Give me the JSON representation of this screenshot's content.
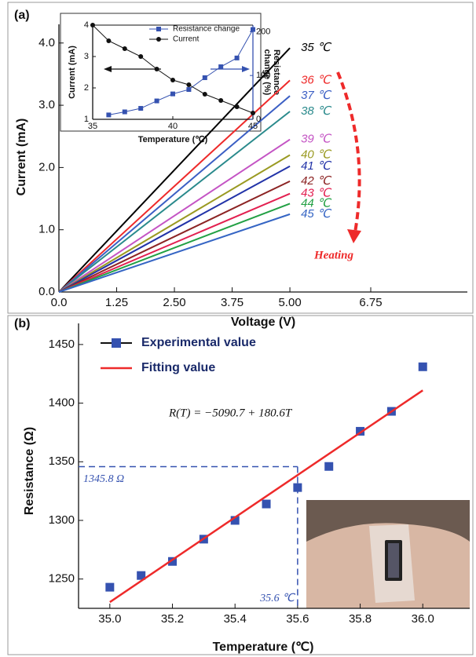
{
  "chart_data": [
    {
      "type": "line",
      "panel": "(a)",
      "xlabel": "Voltage (V)",
      "ylabel": "Current (mA)",
      "x": [
        0,
        5
      ],
      "xlim": [
        0,
        6.75
      ],
      "xticks": [
        {
          "value": 0,
          "label": "0.0"
        },
        1.25,
        {
          "value": 2.5,
          "label": "2.50"
        },
        3.75,
        {
          "value": 5,
          "label": "5.00"
        },
        6.75
      ],
      "ylim": [
        0,
        4.3
      ],
      "yticks": [
        {
          "value": 0,
          "label": "0.0"
        },
        {
          "value": 1,
          "label": "1.0"
        },
        {
          "value": 2,
          "label": "2.0"
        },
        {
          "value": 3,
          "label": "3.0"
        },
        {
          "value": 4,
          "label": "4.0"
        }
      ],
      "series": [
        {
          "name": "35 ℃",
          "color": "#000000",
          "values": [
            0,
            3.92
          ]
        },
        {
          "name": "36 ℃",
          "color": "#ee2a2a",
          "values": [
            0,
            3.4
          ]
        },
        {
          "name": "37 ℃",
          "color": "#3b5fc4",
          "values": [
            0,
            3.15
          ]
        },
        {
          "name": "38 ℃",
          "color": "#2a8a8c",
          "values": [
            0,
            2.9
          ]
        },
        {
          "name": "39 ℃",
          "color": "#c454c4",
          "values": [
            0,
            2.45
          ]
        },
        {
          "name": "40 ℃",
          "color": "#9a9a22",
          "values": [
            0,
            2.2
          ]
        },
        {
          "name": "41 ℃",
          "color": "#2233a8",
          "values": [
            0,
            2.02
          ]
        },
        {
          "name": "42 ℃",
          "color": "#8c2424",
          "values": [
            0,
            1.78
          ]
        },
        {
          "name": "43 ℃",
          "color": "#e22050",
          "values": [
            0,
            1.58
          ]
        },
        {
          "name": "44 ℃",
          "color": "#22a044",
          "values": [
            0,
            1.42
          ]
        },
        {
          "name": "45 ℃",
          "color": "#3565c4",
          "values": [
            0,
            1.25
          ]
        }
      ],
      "annotation": "Heating"
    },
    {
      "type": "line",
      "xlabel": "Temperature (℃)",
      "ylabel": "Current (mA)",
      "y2label": [
        "Resistance",
        "change (%)"
      ],
      "x": [
        35,
        36,
        37,
        38,
        39,
        40,
        41,
        42,
        43,
        44,
        45
      ],
      "xlim": [
        35,
        45
      ],
      "xticks": [
        35,
        40,
        45
      ],
      "ylim": [
        1,
        4
      ],
      "yticks": [
        1,
        2,
        3,
        4
      ],
      "y2lim": [
        0,
        215
      ],
      "y2ticks": [
        0,
        100,
        200
      ],
      "series": [
        {
          "name": "Resistance change",
          "color": "#3552b0",
          "marker": "square",
          "axis": "y2",
          "values": [
            null,
            10,
            17,
            25,
            42,
            58,
            68,
            95,
            120,
            140,
            205
          ]
        },
        {
          "name": "Current",
          "color": "#111111",
          "marker": "circle",
          "values": [
            4.0,
            3.5,
            3.25,
            3.0,
            2.6,
            2.25,
            2.1,
            1.8,
            1.6,
            1.4,
            1.2
          ]
        }
      ]
    },
    {
      "type": "scatter",
      "panel": "(b)",
      "xlabel": "Temperature (℃)",
      "ylabel": "Resistance (Ω)",
      "x": [
        35.0,
        35.1,
        35.2,
        35.3,
        35.4,
        35.5,
        35.6,
        35.7,
        35.8,
        35.9,
        36.0
      ],
      "xlim": [
        34.9,
        36.15
      ],
      "xticks": [
        {
          "value": 35,
          "label": "35.0"
        },
        35.2,
        35.4,
        35.6,
        35.8,
        {
          "value": 36,
          "label": "36.0"
        }
      ],
      "ylim": [
        1225,
        1468
      ],
      "yticks": [
        1250,
        1300,
        1350,
        1400,
        1450
      ],
      "series": [
        {
          "name": "Experimental value",
          "color": "#3552b0",
          "marker": "square",
          "values": [
            1243,
            1253,
            1265,
            1284,
            1300,
            1314,
            1328,
            1346,
            1376,
            1393,
            1431
          ]
        },
        {
          "name": "Fitting value",
          "color": "#ee2a2a",
          "x": [
            35,
            36
          ],
          "values": [
            1230.3,
            1410.9
          ]
        }
      ],
      "equation": "R(T) = −5090.7 + 180.6T",
      "annotations": [
        {
          "text": "1345.8 Ω",
          "value": 1345.8,
          "axis": "y"
        },
        {
          "text": "35.6 ℃",
          "value": 35.6,
          "axis": "x"
        }
      ]
    }
  ]
}
